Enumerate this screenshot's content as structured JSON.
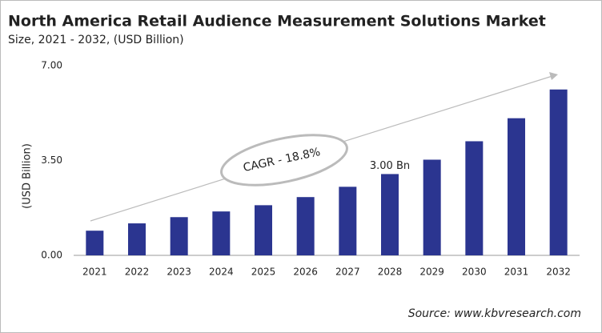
{
  "chart_data": {
    "type": "bar",
    "title": "North America Retail Audience Measurement Solutions Market",
    "subtitle": "Size, 2021 - 2032, (USD Billion)",
    "y_label": "(USD Billion)",
    "annotation": "CAGR - 18.8%",
    "source": "Source: www.kbvresearch.com",
    "categories": [
      "2021",
      "2022",
      "2023",
      "2024",
      "2025",
      "2026",
      "2027",
      "2028",
      "2029",
      "2030",
      "2031",
      "2032"
    ],
    "values": [
      0.91,
      1.18,
      1.41,
      1.62,
      1.85,
      2.15,
      2.53,
      3.0,
      3.53,
      4.21,
      5.06,
      6.12
    ],
    "value_labels": [
      null,
      null,
      null,
      null,
      null,
      null,
      null,
      "3.00 Bn",
      null,
      null,
      null,
      null
    ],
    "color": "#2b3590",
    "ylim": [
      0,
      7
    ],
    "yticks": [
      {
        "value": 0,
        "label": "0.00"
      },
      {
        "value": 3.5,
        "label": "3.50"
      },
      {
        "value": 7,
        "label": "7.00"
      }
    ],
    "grid": false
  }
}
